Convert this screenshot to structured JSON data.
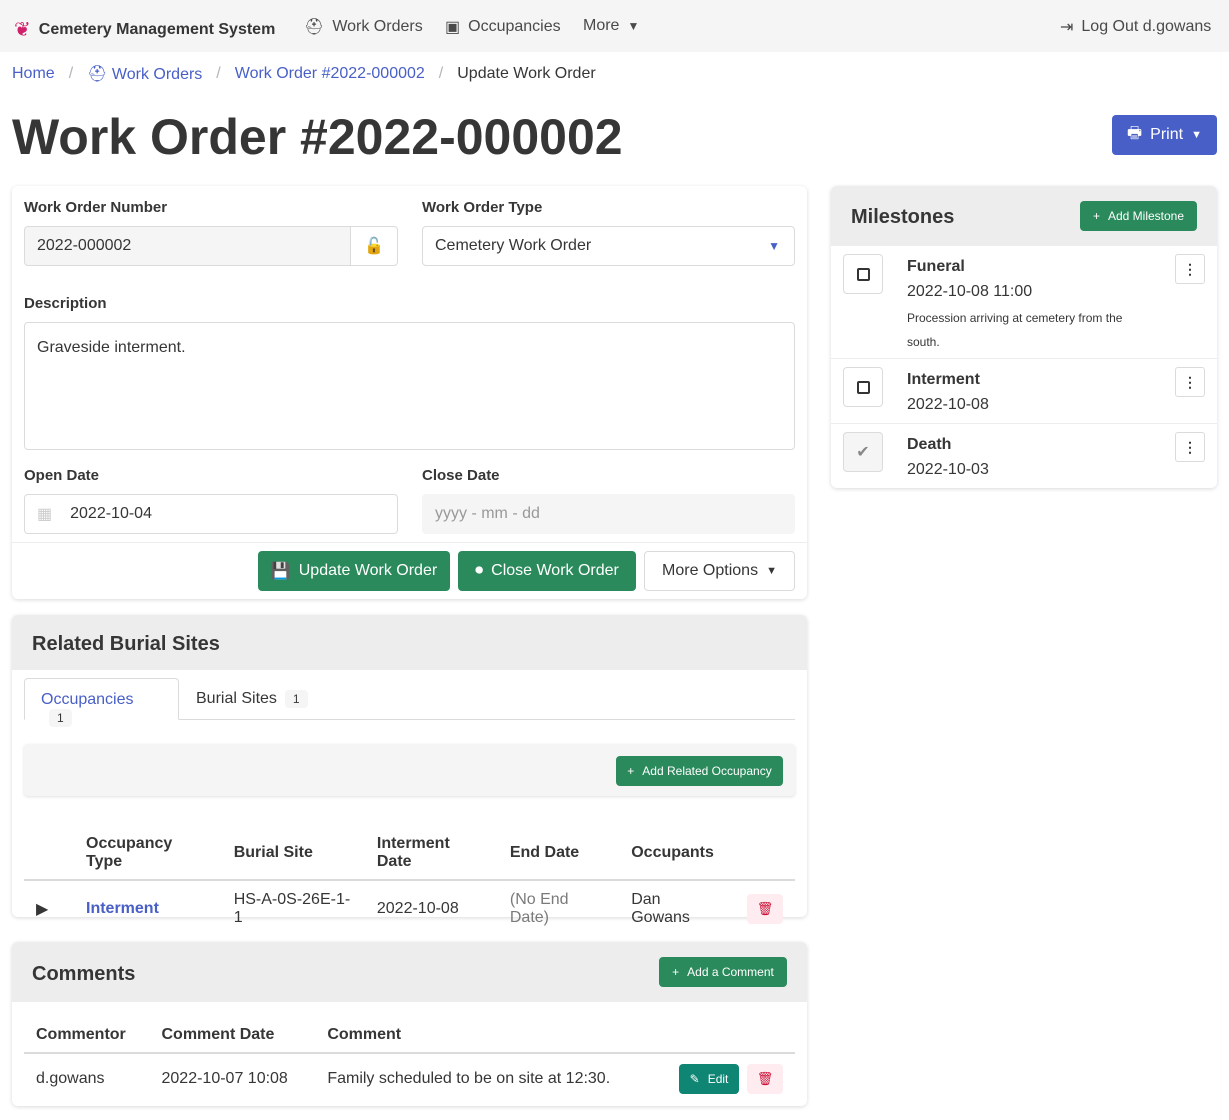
{
  "nav": {
    "brand": "Cemetery Management System",
    "work_orders": "Work Orders",
    "occupancies": "Occupancies",
    "more": "More",
    "logout": "Log Out d.gowans"
  },
  "breadcrumb": {
    "home": "Home",
    "work_orders": "Work Orders",
    "work_order": "Work Order #2022-000002",
    "current": "Update Work Order"
  },
  "page": {
    "title": "Work Order #2022-000002",
    "print": "Print"
  },
  "form": {
    "number_label": "Work Order Number",
    "number_value": "2022-000002",
    "type_label": "Work Order Type",
    "type_value": "Cemetery Work Order",
    "description_label": "Description",
    "description_value": "Graveside interment.",
    "open_label": "Open Date",
    "open_value": "2022-10-04",
    "close_label": "Close Date",
    "close_placeholder": "yyyy - mm - dd",
    "update": "Update Work Order",
    "close": "Close Work Order",
    "more": "More Options"
  },
  "milestones": {
    "title": "Milestones",
    "add": "Add Milestone",
    "items": [
      {
        "name": "Funeral",
        "date": "2022-10-08 11:00",
        "note": "Procession arriving at cemetery from the south.",
        "completed": false
      },
      {
        "name": "Interment",
        "date": "2022-10-08",
        "completed": false
      },
      {
        "name": "Death",
        "date": "2022-10-03",
        "completed": true
      }
    ]
  },
  "related": {
    "title": "Related Burial Sites",
    "tabs": [
      {
        "label": "Occupancies",
        "count": "1",
        "active": true
      },
      {
        "label": "Burial Sites",
        "count": "1",
        "active": false
      }
    ],
    "add": "Add Related Occupancy",
    "columns": [
      "Occupancy Type",
      "Burial Site",
      "Interment Date",
      "End Date",
      "Occupants"
    ],
    "rows": [
      {
        "type": "Interment",
        "site": "HS-A-0S-26E-1-1",
        "interment": "2022-10-08",
        "end": "(No End Date)",
        "occupants": "Dan Gowans"
      }
    ]
  },
  "comments": {
    "title": "Comments",
    "add": "Add a Comment",
    "columns": [
      "Commentor",
      "Comment Date",
      "Comment"
    ],
    "rows": [
      {
        "commentor": "d.gowans",
        "date": "2022-10-07 10:08",
        "comment": "Family scheduled to be on site at 12:30.",
        "edit": "Edit"
      }
    ]
  },
  "colors": {
    "primary": "#485fc7",
    "success": "#2a8a5c",
    "danger": "#cc0f35"
  }
}
